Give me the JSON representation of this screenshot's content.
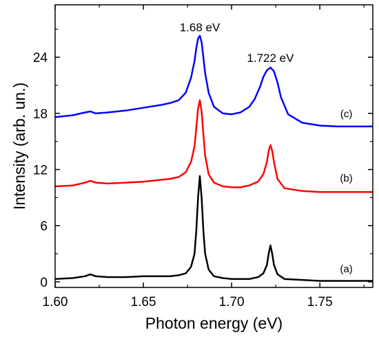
{
  "chart_data": {
    "type": "line",
    "xlabel": "Photon energy (eV)",
    "ylabel": "Intensity (arb. un.)",
    "xlim": [
      1.6,
      1.78
    ],
    "ylim": [
      -0.6,
      29.6
    ],
    "x_ticks": [
      1.6,
      1.65,
      1.7,
      1.75
    ],
    "x_tick_labels": [
      "1.60",
      "1.65",
      "1.70",
      "1.75"
    ],
    "y_ticks": [
      0,
      6,
      12,
      18,
      24
    ],
    "y_tick_labels": [
      "0",
      "6",
      "12",
      "18",
      "24"
    ],
    "grid": false,
    "legend": "none",
    "annotations": [
      {
        "text": "1.68 eV",
        "x": 1.682,
        "y": 26.2
      },
      {
        "text": "1.722 eV",
        "x": 1.722,
        "y": 22.9
      }
    ],
    "series": [
      {
        "label": "(a)",
        "label_x": 1.765,
        "label_y": 1.0,
        "color": "#000000",
        "x": [
          1.6,
          1.61,
          1.617,
          1.62,
          1.623,
          1.63,
          1.64,
          1.65,
          1.66,
          1.665,
          1.67,
          1.674,
          1.677,
          1.679,
          1.68,
          1.681,
          1.682,
          1.683,
          1.684,
          1.685,
          1.687,
          1.69,
          1.695,
          1.7,
          1.705,
          1.71,
          1.715,
          1.718,
          1.72,
          1.721,
          1.722,
          1.723,
          1.724,
          1.726,
          1.73,
          1.74,
          1.75,
          1.76,
          1.77,
          1.78
        ],
        "y": [
          0.3,
          0.4,
          0.6,
          0.8,
          0.6,
          0.5,
          0.5,
          0.6,
          0.6,
          0.6,
          0.7,
          0.9,
          1.6,
          3.0,
          5.5,
          9.0,
          11.3,
          9.0,
          5.5,
          3.0,
          1.3,
          0.6,
          0.4,
          0.3,
          0.3,
          0.3,
          0.5,
          0.9,
          1.8,
          3.0,
          3.9,
          3.0,
          1.8,
          0.8,
          0.3,
          0.2,
          0.1,
          0.1,
          0.1,
          0.1
        ]
      },
      {
        "label": "(b)",
        "label_x": 1.765,
        "label_y": 10.7,
        "color": "#ff0000",
        "x": [
          1.6,
          1.61,
          1.617,
          1.62,
          1.623,
          1.63,
          1.64,
          1.65,
          1.66,
          1.665,
          1.67,
          1.674,
          1.677,
          1.679,
          1.68,
          1.681,
          1.682,
          1.683,
          1.684,
          1.685,
          1.687,
          1.69,
          1.695,
          1.7,
          1.705,
          1.71,
          1.715,
          1.718,
          1.72,
          1.721,
          1.722,
          1.723,
          1.724,
          1.726,
          1.73,
          1.74,
          1.75,
          1.76,
          1.77,
          1.78
        ],
        "y": [
          10.2,
          10.3,
          10.6,
          10.8,
          10.6,
          10.5,
          10.6,
          10.7,
          10.9,
          11.0,
          11.2,
          11.7,
          12.8,
          14.5,
          16.5,
          18.5,
          19.4,
          18.2,
          15.8,
          13.5,
          11.5,
          10.6,
          10.2,
          10.1,
          10.1,
          10.3,
          10.7,
          11.5,
          12.8,
          14.0,
          14.6,
          14.0,
          12.8,
          11.0,
          10.0,
          9.7,
          9.6,
          9.6,
          9.6,
          9.6
        ]
      },
      {
        "label": "(c)",
        "label_x": 1.765,
        "label_y": 17.6,
        "color": "#0000ff",
        "x": [
          1.6,
          1.61,
          1.617,
          1.62,
          1.623,
          1.63,
          1.64,
          1.65,
          1.66,
          1.665,
          1.67,
          1.674,
          1.677,
          1.679,
          1.68,
          1.681,
          1.682,
          1.683,
          1.684,
          1.685,
          1.687,
          1.69,
          1.695,
          1.7,
          1.705,
          1.71,
          1.713,
          1.716,
          1.718,
          1.72,
          1.722,
          1.724,
          1.726,
          1.728,
          1.732,
          1.74,
          1.75,
          1.76,
          1.77,
          1.78
        ],
        "y": [
          17.6,
          17.8,
          18.1,
          18.2,
          18.0,
          18.1,
          18.3,
          18.6,
          18.9,
          19.1,
          19.4,
          20.2,
          21.8,
          23.6,
          25.0,
          26.0,
          26.3,
          25.6,
          24.0,
          22.3,
          20.2,
          18.7,
          18.0,
          17.9,
          18.1,
          18.7,
          19.5,
          20.8,
          21.9,
          22.6,
          22.9,
          22.5,
          21.3,
          19.7,
          17.9,
          17.0,
          16.7,
          16.6,
          16.6,
          16.6
        ]
      }
    ]
  }
}
